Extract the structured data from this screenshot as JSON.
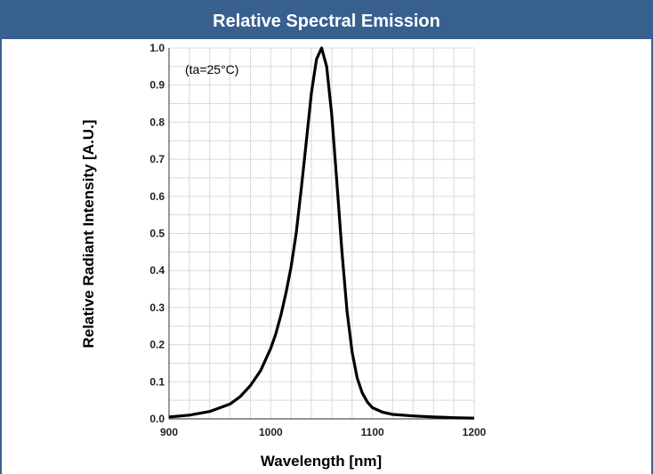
{
  "header": {
    "title": "Relative Spectral Emission"
  },
  "colors": {
    "header_bg": "#37608f",
    "curve": "#000000",
    "grid": "#d9d9d9"
  },
  "chart_data": {
    "type": "line",
    "title": "Relative Spectral Emission",
    "xlabel": "Wavelength [nm]",
    "ylabel": "Relative Radiant Intensity [A.U.]",
    "annotation": "(ta=25°C)",
    "xlim": [
      900,
      1200
    ],
    "ylim": [
      0.0,
      1.0
    ],
    "x_ticks": [
      900,
      1000,
      1100,
      1200
    ],
    "x_tick_labels": [
      "900",
      "1000",
      "1100",
      "1200"
    ],
    "y_ticks": [
      0.0,
      0.1,
      0.2,
      0.3,
      0.4,
      0.5,
      0.6,
      0.7,
      0.8,
      0.9,
      1.0
    ],
    "y_tick_labels": [
      "0.0",
      "0.1",
      "0.2",
      "0.3",
      "0.4",
      "0.5",
      "0.6",
      "0.7",
      "0.8",
      "0.9",
      "1.0"
    ],
    "grid": true,
    "legend": "none",
    "series": [
      {
        "x": [
          900,
          920,
          940,
          960,
          970,
          980,
          990,
          1000,
          1005,
          1010,
          1015,
          1020,
          1025,
          1030,
          1035,
          1040,
          1045,
          1050,
          1055,
          1060,
          1065,
          1070,
          1075,
          1080,
          1085,
          1090,
          1095,
          1100,
          1110,
          1120,
          1140,
          1160,
          1180,
          1200
        ],
        "y": [
          0.005,
          0.01,
          0.02,
          0.04,
          0.06,
          0.09,
          0.13,
          0.19,
          0.23,
          0.28,
          0.34,
          0.41,
          0.5,
          0.62,
          0.75,
          0.88,
          0.97,
          1.0,
          0.95,
          0.82,
          0.64,
          0.45,
          0.29,
          0.18,
          0.11,
          0.07,
          0.045,
          0.03,
          0.018,
          0.012,
          0.008,
          0.005,
          0.003,
          0.002
        ]
      }
    ]
  }
}
